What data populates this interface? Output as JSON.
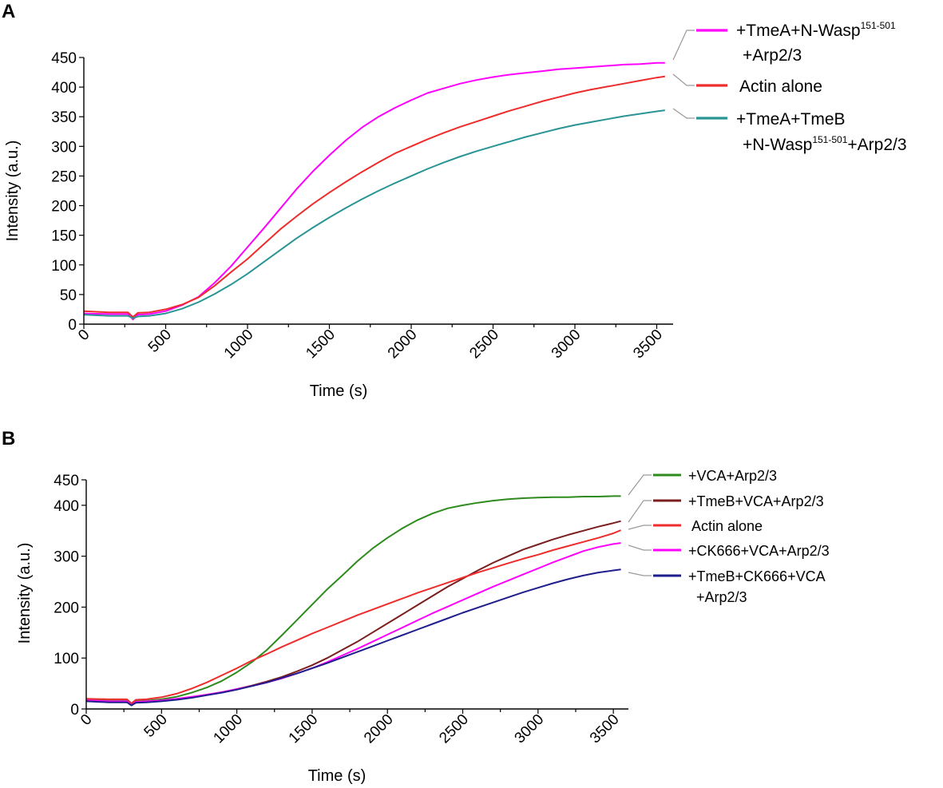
{
  "colors": {
    "magenta": "#ff00ff",
    "red": "#ee2c2c",
    "teal": "#2a9494",
    "green": "#2e8b1e",
    "brown": "#7a1e1e",
    "blue": "#1e1e8c"
  },
  "chart_data": [
    {
      "panel": "A",
      "type": "line",
      "xlabel": "Time (s)",
      "ylabel": "Intensity (a.u.)",
      "xlim": [
        0,
        3600
      ],
      "ylim": [
        0,
        450
      ],
      "xticks": [
        0,
        500,
        1000,
        1500,
        2000,
        2500,
        3000,
        3500
      ],
      "yticks": [
        0,
        50,
        100,
        150,
        200,
        250,
        300,
        350,
        400,
        450
      ],
      "series": [
        {
          "name": "+TmeA+N-Wasp151-501+Arp2/3",
          "label_main": "+TmeA+N-Wasp",
          "label_sup": "151-501",
          "label_line2": "+Arp2/3",
          "color": "magenta",
          "x": [
            0,
            150,
            270,
            300,
            330,
            400,
            500,
            600,
            700,
            800,
            900,
            1000,
            1100,
            1200,
            1300,
            1400,
            1500,
            1600,
            1700,
            1800,
            1900,
            2000,
            2100,
            2200,
            2300,
            2400,
            2500,
            2600,
            2700,
            2800,
            2900,
            3000,
            3100,
            3200,
            3300,
            3400,
            3500,
            3550
          ],
          "y": [
            18,
            17,
            17,
            8,
            16,
            17,
            22,
            32,
            46,
            70,
            98,
            130,
            162,
            195,
            228,
            258,
            285,
            310,
            332,
            350,
            365,
            378,
            390,
            398,
            406,
            412,
            417,
            421,
            424,
            427,
            430,
            432,
            434,
            436,
            438,
            439,
            441,
            441
          ]
        },
        {
          "name": "Actin alone",
          "label_main": "Actin alone",
          "color": "red",
          "x": [
            0,
            150,
            270,
            300,
            330,
            400,
            500,
            600,
            700,
            800,
            900,
            1000,
            1100,
            1200,
            1300,
            1400,
            1500,
            1600,
            1700,
            1800,
            1900,
            2000,
            2100,
            2200,
            2300,
            2400,
            2500,
            2600,
            2700,
            2800,
            2900,
            3000,
            3100,
            3200,
            3300,
            3400,
            3500,
            3550
          ],
          "y": [
            22,
            20,
            20,
            12,
            19,
            20,
            25,
            33,
            45,
            65,
            88,
            110,
            135,
            160,
            182,
            203,
            222,
            240,
            257,
            273,
            288,
            300,
            312,
            323,
            333,
            342,
            351,
            360,
            368,
            376,
            383,
            390,
            396,
            401,
            406,
            411,
            416,
            418
          ]
        },
        {
          "name": "+TmeA+TmeB+N-Wasp151-501+Arp2/3",
          "label_main": "+TmeA+TmeB",
          "label_line2_main": "+N-Wasp",
          "label_sup": "151-501",
          "label_line2_tail": "+Arp2/3",
          "color": "teal",
          "x": [
            0,
            150,
            270,
            300,
            330,
            400,
            500,
            600,
            700,
            800,
            900,
            1000,
            1100,
            1200,
            1300,
            1400,
            1500,
            1600,
            1700,
            1800,
            1900,
            2000,
            2100,
            2200,
            2300,
            2400,
            2500,
            2600,
            2700,
            2800,
            2900,
            3000,
            3100,
            3200,
            3300,
            3400,
            3500,
            3550
          ],
          "y": [
            16,
            14,
            14,
            10,
            13,
            14,
            18,
            26,
            37,
            51,
            67,
            85,
            105,
            125,
            145,
            163,
            180,
            196,
            211,
            225,
            238,
            250,
            262,
            273,
            283,
            292,
            300,
            308,
            316,
            323,
            330,
            336,
            341,
            346,
            351,
            355,
            359,
            361
          ]
        }
      ]
    },
    {
      "panel": "B",
      "type": "line",
      "xlabel": "Time (s)",
      "ylabel": "Intensity (a.u.)",
      "xlim": [
        0,
        3600
      ],
      "ylim": [
        0,
        450
      ],
      "xticks": [
        0,
        500,
        1000,
        1500,
        2000,
        2500,
        3000,
        3500
      ],
      "yticks": [
        0,
        100,
        200,
        300,
        400,
        450
      ],
      "series": [
        {
          "name": "+VCA+Arp2/3",
          "label_main": "+VCA+Arp2/3",
          "color": "green",
          "x": [
            0,
            150,
            270,
            300,
            330,
            400,
            500,
            600,
            700,
            800,
            900,
            1000,
            1100,
            1200,
            1300,
            1400,
            1500,
            1600,
            1700,
            1800,
            1900,
            2000,
            2100,
            2200,
            2300,
            2400,
            2500,
            2600,
            2700,
            2800,
            2900,
            3000,
            3100,
            3200,
            3300,
            3400,
            3500,
            3550
          ],
          "y": [
            18,
            16,
            16,
            8,
            15,
            16,
            19,
            24,
            32,
            42,
            55,
            72,
            92,
            116,
            145,
            175,
            205,
            235,
            262,
            290,
            315,
            336,
            355,
            371,
            384,
            394,
            400,
            405,
            409,
            412,
            414,
            415,
            416,
            416,
            417,
            417,
            418,
            418
          ]
        },
        {
          "name": "+TmeB+VCA+Arp2/3",
          "label_main": "+TmeB+VCA+Arp2/3",
          "color": "brown",
          "x": [
            0,
            150,
            270,
            300,
            330,
            400,
            500,
            600,
            700,
            800,
            900,
            1000,
            1100,
            1200,
            1300,
            1400,
            1500,
            1600,
            1700,
            1800,
            1900,
            2000,
            2100,
            2200,
            2300,
            2400,
            2500,
            2600,
            2700,
            2800,
            2900,
            3000,
            3100,
            3200,
            3300,
            3400,
            3500,
            3550
          ],
          "y": [
            16,
            14,
            14,
            7,
            13,
            14,
            16,
            19,
            23,
            28,
            33,
            39,
            46,
            54,
            63,
            74,
            86,
            100,
            116,
            132,
            150,
            168,
            186,
            204,
            222,
            240,
            256,
            272,
            287,
            300,
            313,
            323,
            333,
            342,
            350,
            358,
            365,
            369
          ]
        },
        {
          "name": "Actin alone",
          "label_main": "Actin alone",
          "color": "red",
          "x": [
            0,
            150,
            270,
            300,
            330,
            400,
            500,
            600,
            700,
            800,
            900,
            1000,
            1100,
            1200,
            1300,
            1400,
            1500,
            1600,
            1700,
            1800,
            1900,
            2000,
            2100,
            2200,
            2300,
            2400,
            2500,
            2600,
            2700,
            2800,
            2900,
            3000,
            3100,
            3200,
            3300,
            3400,
            3500,
            3550
          ],
          "y": [
            20,
            19,
            19,
            11,
            18,
            19,
            23,
            30,
            40,
            52,
            66,
            80,
            95,
            108,
            122,
            135,
            148,
            160,
            172,
            184,
            195,
            206,
            217,
            228,
            238,
            248,
            258,
            268,
            277,
            286,
            295,
            303,
            312,
            320,
            328,
            336,
            345,
            351
          ]
        },
        {
          "name": "+CK666+VCA+Arp2/3",
          "label_main": "+CK666+VCA+Arp2/3",
          "color": "magenta",
          "x": [
            0,
            150,
            270,
            300,
            330,
            400,
            500,
            600,
            700,
            800,
            900,
            1000,
            1100,
            1200,
            1300,
            1400,
            1500,
            1600,
            1700,
            1800,
            1900,
            2000,
            2100,
            2200,
            2300,
            2400,
            2500,
            2600,
            2700,
            2800,
            2900,
            3000,
            3100,
            3200,
            3300,
            3400,
            3500,
            3550
          ],
          "y": [
            17,
            15,
            15,
            7,
            14,
            15,
            17,
            20,
            24,
            28,
            33,
            39,
            45,
            52,
            60,
            70,
            80,
            92,
            105,
            118,
            132,
            146,
            160,
            174,
            188,
            201,
            214,
            227,
            240,
            252,
            264,
            276,
            288,
            299,
            310,
            318,
            324,
            326
          ]
        },
        {
          "name": "+TmeB+CK666+VCA+Arp2/3",
          "label_main": "+TmeB+CK666+VCA",
          "label_line2": "+Arp2/3",
          "color": "blue",
          "x": [
            0,
            150,
            270,
            300,
            330,
            400,
            500,
            600,
            700,
            800,
            900,
            1000,
            1100,
            1200,
            1300,
            1400,
            1500,
            1600,
            1700,
            1800,
            1900,
            2000,
            2100,
            2200,
            2300,
            2400,
            2500,
            2600,
            2700,
            2800,
            2900,
            3000,
            3100,
            3200,
            3300,
            3400,
            3500,
            3550
          ],
          "y": [
            15,
            13,
            13,
            7,
            12,
            13,
            15,
            18,
            22,
            27,
            32,
            38,
            45,
            52,
            61,
            70,
            80,
            90,
            101,
            112,
            123,
            134,
            145,
            156,
            167,
            178,
            189,
            199,
            209,
            219,
            229,
            238,
            247,
            255,
            262,
            268,
            272,
            274
          ]
        }
      ]
    }
  ]
}
